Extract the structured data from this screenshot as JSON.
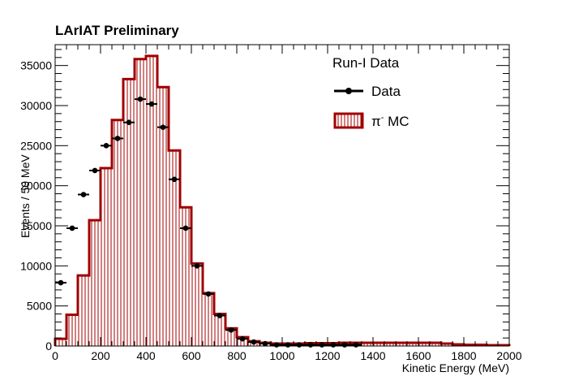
{
  "chart_data": {
    "type": "bar",
    "title": "LArIAT Preliminary",
    "xlabel": "Kinetic Energy (MeV)",
    "ylabel": "Events / 50 MeV",
    "xlim": [
      0,
      2000
    ],
    "ylim": [
      0,
      37600
    ],
    "x_ticks": [
      0,
      200,
      400,
      600,
      800,
      1000,
      1200,
      1400,
      1600,
      1800,
      2000
    ],
    "y_ticks": [
      0,
      5000,
      10000,
      15000,
      20000,
      25000,
      30000,
      35000
    ],
    "bin_width": 50,
    "grid": false,
    "legend_placement": "top-right",
    "legend_header": "Run-I Data",
    "series": [
      {
        "name": "Data",
        "style": "points",
        "color": "#000000",
        "x": [
          25,
          75,
          125,
          175,
          225,
          275,
          325,
          375,
          425,
          475,
          525,
          575,
          625,
          675,
          725,
          775,
          825,
          875,
          925,
          975,
          1025,
          1075,
          1125,
          1175,
          1225,
          1275,
          1325
        ],
        "values": [
          7900,
          14700,
          18900,
          21900,
          25000,
          25900,
          27900,
          30800,
          30200,
          27300,
          20800,
          14700,
          10000,
          6500,
          3800,
          2000,
          900,
          500,
          300,
          150,
          150,
          150,
          150,
          150,
          150,
          150,
          150
        ]
      },
      {
        "name": "π⁻ MC",
        "name_base": "π",
        "name_sup": "-",
        "name_rest": " MC",
        "style": "histogram",
        "color": "#a00000",
        "bin_edges": [
          0,
          50,
          100,
          150,
          200,
          250,
          300,
          350,
          400,
          450,
          500,
          550,
          600,
          650,
          700,
          750,
          800,
          850,
          900,
          950,
          1000,
          1050,
          1100,
          1150,
          1200,
          1250,
          1300,
          1350,
          1400,
          1450,
          1500,
          1550,
          1600,
          1650,
          1700,
          1750,
          1800,
          1850,
          1900,
          1950,
          2000
        ],
        "values": [
          900,
          3900,
          8800,
          15700,
          22200,
          28200,
          33300,
          35800,
          36200,
          32300,
          24400,
          17300,
          10300,
          6600,
          4000,
          2200,
          1100,
          600,
          400,
          300,
          300,
          300,
          350,
          350,
          350,
          400,
          400,
          400,
          400,
          400,
          400,
          400,
          400,
          400,
          300,
          200,
          150,
          150,
          100,
          100
        ]
      }
    ]
  }
}
